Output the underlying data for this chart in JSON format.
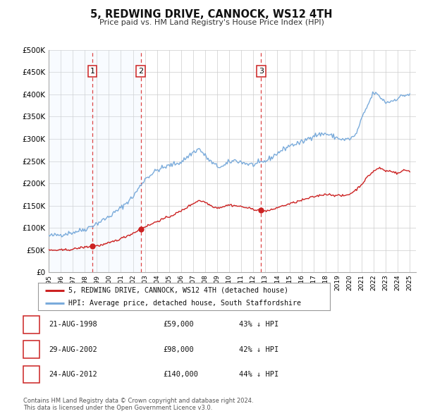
{
  "title": "5, REDWING DRIVE, CANNOCK, WS12 4TH",
  "subtitle": "Price paid vs. HM Land Registry's House Price Index (HPI)",
  "ylim": [
    0,
    500000
  ],
  "yticks": [
    0,
    50000,
    100000,
    150000,
    200000,
    250000,
    300000,
    350000,
    400000,
    450000,
    500000
  ],
  "ytick_labels": [
    "£0",
    "£50K",
    "£100K",
    "£150K",
    "£200K",
    "£250K",
    "£300K",
    "£350K",
    "£400K",
    "£450K",
    "£500K"
  ],
  "xlim_start": 1995.0,
  "xlim_end": 2025.5,
  "xticks": [
    1995,
    1996,
    1997,
    1998,
    1999,
    2000,
    2001,
    2002,
    2003,
    2004,
    2005,
    2006,
    2007,
    2008,
    2009,
    2010,
    2011,
    2012,
    2013,
    2014,
    2015,
    2016,
    2017,
    2018,
    2019,
    2020,
    2021,
    2022,
    2023,
    2024,
    2025
  ],
  "hpi_color": "#7aabdb",
  "price_color": "#cc2222",
  "vline_color": "#dd4444",
  "shade_color": "#ddeeff",
  "transaction_box_color": "#cc2222",
  "transactions": [
    {
      "num": 1,
      "date": "21-AUG-1998",
      "year": 1998.63,
      "price": 59000,
      "pct": "43% ↓ HPI"
    },
    {
      "num": 2,
      "date": "29-AUG-2002",
      "year": 2002.66,
      "price": 98000,
      "pct": "42% ↓ HPI"
    },
    {
      "num": 3,
      "date": "24-AUG-2012",
      "year": 2012.65,
      "price": 140000,
      "pct": "44% ↓ HPI"
    }
  ],
  "legend_line1": "5, REDWING DRIVE, CANNOCK, WS12 4TH (detached house)",
  "legend_line2": "HPI: Average price, detached house, South Staffordshire",
  "footnote1": "Contains HM Land Registry data © Crown copyright and database right 2024.",
  "footnote2": "This data is licensed under the Open Government Licence v3.0.",
  "background_color": "#ffffff",
  "grid_color": "#cccccc",
  "hpi_anchors_years": [
    1995.0,
    1996.0,
    1997.0,
    1998.0,
    1999.0,
    2000.0,
    2001.0,
    2002.0,
    2003.0,
    2004.0,
    2005.0,
    2006.0,
    2007.0,
    2007.5,
    2008.0,
    2008.5,
    2009.0,
    2009.5,
    2010.0,
    2010.5,
    2011.0,
    2011.5,
    2012.0,
    2012.5,
    2013.0,
    2013.5,
    2014.0,
    2015.0,
    2016.0,
    2017.0,
    2018.0,
    2019.0,
    2019.5,
    2020.0,
    2020.5,
    2021.0,
    2021.5,
    2022.0,
    2022.5,
    2023.0,
    2023.5,
    2024.0,
    2024.5,
    2025.0
  ],
  "hpi_anchors_vals": [
    82000,
    85000,
    90000,
    97000,
    110000,
    125000,
    145000,
    170000,
    210000,
    230000,
    240000,
    248000,
    270000,
    278000,
    262000,
    248000,
    238000,
    238000,
    248000,
    252000,
    248000,
    244000,
    242000,
    245000,
    250000,
    258000,
    268000,
    285000,
    292000,
    308000,
    312000,
    302000,
    298000,
    300000,
    308000,
    345000,
    375000,
    405000,
    395000,
    382000,
    385000,
    392000,
    398000,
    400000
  ],
  "price_anchors_years": [
    1995.0,
    1996.0,
    1997.0,
    1997.5,
    1998.0,
    1998.63,
    1999.0,
    1999.5,
    2000.0,
    2001.0,
    2002.0,
    2002.66,
    2003.0,
    2003.5,
    2004.0,
    2005.0,
    2006.0,
    2007.0,
    2007.5,
    2008.0,
    2008.5,
    2009.0,
    2009.5,
    2010.0,
    2010.5,
    2011.0,
    2011.5,
    2012.0,
    2012.65,
    2013.0,
    2013.5,
    2014.0,
    2015.0,
    2016.0,
    2017.0,
    2018.0,
    2019.0,
    2019.5,
    2020.0,
    2020.5,
    2021.0,
    2021.5,
    2022.0,
    2022.5,
    2023.0,
    2023.5,
    2024.0,
    2024.5,
    2025.0
  ],
  "price_anchors_vals": [
    50000,
    50000,
    52000,
    55000,
    57000,
    59000,
    60000,
    62000,
    66000,
    76000,
    88000,
    98000,
    103000,
    108000,
    115000,
    125000,
    138000,
    155000,
    162000,
    158000,
    150000,
    145000,
    148000,
    152000,
    150000,
    148000,
    145000,
    142000,
    140000,
    138000,
    140000,
    146000,
    154000,
    162000,
    170000,
    176000,
    173000,
    172000,
    176000,
    185000,
    198000,
    215000,
    228000,
    235000,
    228000,
    228000,
    222000,
    230000,
    228000
  ]
}
